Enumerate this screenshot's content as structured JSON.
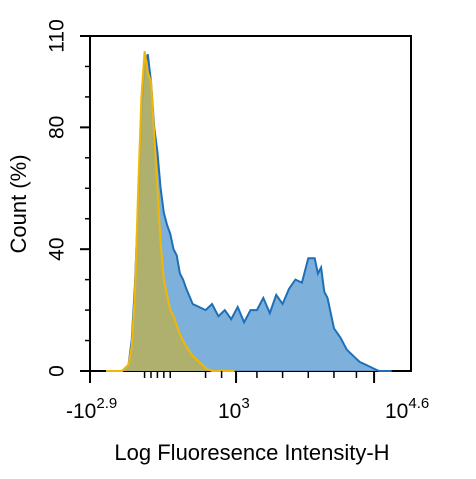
{
  "chart_data": {
    "type": "area",
    "title": "",
    "xlabel": "Log Fluoresence Intensity-H",
    "ylabel": "Count  (%)",
    "ylim": [
      0,
      110
    ],
    "y_ticks": [
      0,
      40,
      80,
      110
    ],
    "x_axis": {
      "scale": "log",
      "tick_labels": [
        {
          "base": "-10",
          "exp": "2.9"
        },
        {
          "base": "10",
          "exp": "3"
        },
        {
          "base": "10",
          "exp": "4.6"
        }
      ]
    },
    "series": [
      {
        "name": "",
        "color": "#1f6fb8",
        "fill": "#6fa9d8",
        "x": [
          0.05,
          0.08,
          0.1,
          0.12,
          0.13,
          0.14,
          0.15,
          0.16,
          0.17,
          0.18,
          0.19,
          0.2,
          0.21,
          0.22,
          0.23,
          0.24,
          0.25,
          0.26,
          0.27,
          0.28,
          0.29,
          0.3,
          0.32,
          0.34,
          0.36,
          0.38,
          0.4,
          0.42,
          0.44,
          0.46,
          0.48,
          0.5,
          0.52,
          0.54,
          0.56,
          0.58,
          0.6,
          0.62,
          0.64,
          0.66,
          0.68,
          0.7,
          0.71,
          0.72,
          0.73,
          0.74,
          0.76,
          0.78,
          0.8,
          0.82,
          0.84,
          0.86,
          0.88,
          0.9,
          0.92,
          0.94
        ],
        "values": [
          0,
          0,
          0,
          2,
          10,
          28,
          55,
          85,
          100,
          104,
          95,
          80,
          72,
          60,
          52,
          48,
          45,
          40,
          38,
          32,
          30,
          27,
          22,
          21,
          20,
          22,
          18,
          20,
          17,
          21,
          16,
          20,
          20,
          24,
          19,
          25,
          22,
          27,
          30,
          29,
          37,
          37,
          32,
          34,
          26,
          24,
          14,
          11,
          7,
          5,
          3,
          2,
          1,
          0,
          0,
          0
        ]
      },
      {
        "name": "",
        "color": "#f2b705",
        "fill": "#b7b05a",
        "x": [
          0.05,
          0.08,
          0.1,
          0.12,
          0.13,
          0.14,
          0.15,
          0.16,
          0.17,
          0.18,
          0.19,
          0.2,
          0.21,
          0.22,
          0.23,
          0.24,
          0.25,
          0.26,
          0.27,
          0.28,
          0.29,
          0.3,
          0.32,
          0.34,
          0.36,
          0.38,
          0.4,
          0.45
        ],
        "values": [
          0,
          0,
          0,
          2,
          8,
          25,
          60,
          90,
          105,
          98,
          95,
          78,
          60,
          42,
          30,
          25,
          20,
          18,
          15,
          12,
          10,
          8,
          5,
          3,
          1,
          0,
          0,
          0
        ]
      }
    ]
  }
}
